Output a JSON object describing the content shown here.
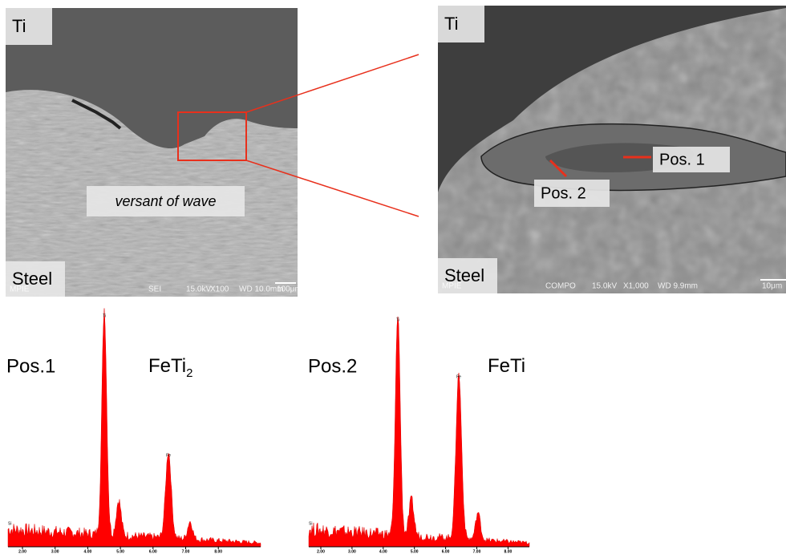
{
  "left_image": {
    "top_label": "Ti",
    "bottom_label": "Steel",
    "annotation": "versant of wave",
    "footer": {
      "logo": "MPIE",
      "mode": "SEI",
      "voltage": "15.0kV",
      "magnification": "X100",
      "working_distance": "WD 10.0mm",
      "scale": "100μm"
    }
  },
  "right_image": {
    "top_label": "Ti",
    "bottom_label": "Steel",
    "markers": [
      "Pos. 1",
      "Pos. 2"
    ],
    "footer": {
      "logo": "MPIE",
      "mode": "COMPO",
      "voltage": "15.0kV",
      "magnification": "X1,000",
      "working_distance": "WD 9.9mm",
      "scale": "10μm"
    }
  },
  "spectra": [
    {
      "position": "Pos.1",
      "phase": "FeTi",
      "phase_subscript": "2",
      "peaks": [
        "Ti",
        "Fe",
        "Si"
      ],
      "axis_ticks": [
        "2.00",
        "3.00",
        "4.00",
        "5.00",
        "6.00",
        "7.00",
        "8.00"
      ]
    },
    {
      "position": "Pos.2",
      "phase": "FeTi",
      "peaks": [
        "Ti",
        "Fe",
        "Si"
      ],
      "axis_ticks": [
        "2.00",
        "3.00",
        "4.00",
        "5.00",
        "6.00",
        "7.00",
        "8.00"
      ]
    }
  ]
}
